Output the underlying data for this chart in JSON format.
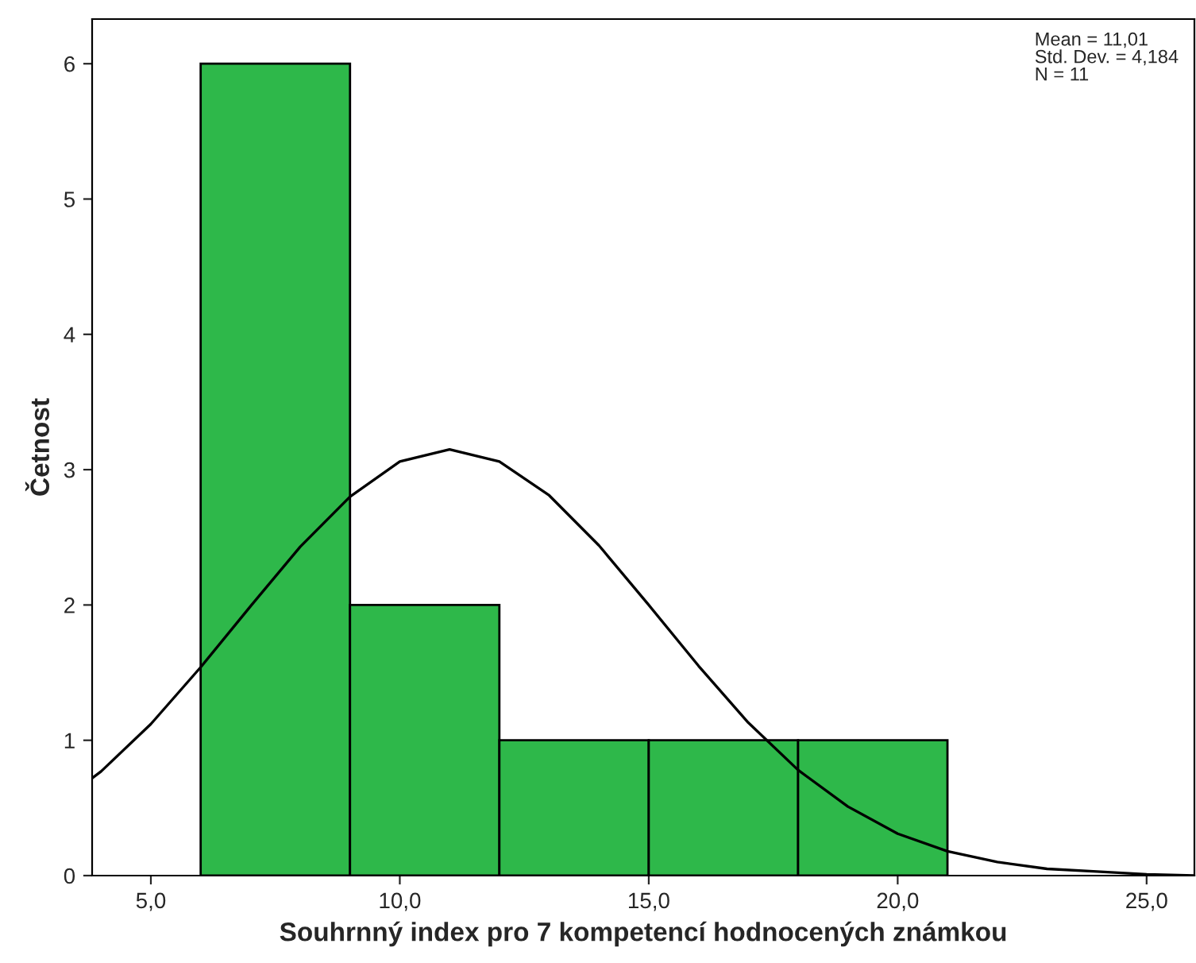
{
  "chart_data": {
    "type": "histogram",
    "xlabel": "Souhrnný index pro 7 kompetencí hodnocených známkou",
    "ylabel": "Četnost",
    "xlim": [
      3.82,
      25.96
    ],
    "xticks": [
      {
        "value": 5,
        "label": "5,0"
      },
      {
        "value": 10,
        "label": "10,0"
      },
      {
        "value": 15,
        "label": "15,0"
      },
      {
        "value": 20,
        "label": "20,0"
      },
      {
        "value": 25,
        "label": "25,0"
      }
    ],
    "ylim": [
      0,
      6.33
    ],
    "yticks": [
      0,
      1,
      2,
      3,
      4,
      5,
      6
    ],
    "series": [
      {
        "bins": [
          6,
          9,
          12,
          15,
          18,
          21
        ],
        "values": [
          6,
          2,
          1,
          1,
          1
        ],
        "color": "#2eb84a"
      },
      {
        "type": "line",
        "color": "#000000",
        "x": [
          3.82,
          4,
          5,
          6,
          7,
          8,
          9,
          10,
          11,
          12,
          13,
          14,
          15,
          16,
          17,
          18,
          19,
          20,
          21,
          22,
          23,
          24,
          25,
          25.96
        ],
        "values": [
          0.72,
          0.77,
          1.12,
          1.54,
          1.99,
          2.43,
          2.8,
          3.06,
          3.15,
          3.06,
          2.81,
          2.44,
          2.0,
          1.55,
          1.13,
          0.78,
          0.51,
          0.31,
          0.18,
          0.1,
          0.05,
          0.03,
          0.01,
          0.0
        ]
      }
    ],
    "annotations": [
      "Mean = 11,01",
      "Std. Dev. = 4,184",
      "N = 11"
    ]
  }
}
